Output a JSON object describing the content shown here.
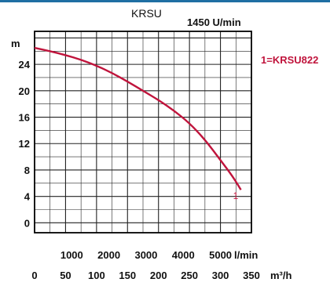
{
  "chart_data": {
    "type": "line",
    "title": "KRSU",
    "subtitle": "1450 U/min",
    "ylabel": "m",
    "x_top_unit": "l/min",
    "x_bottom_unit": "m³/h",
    "x_top_ticks": [
      "1000",
      "2000",
      "3000",
      "4000",
      "5000"
    ],
    "x_bottom_ticks": [
      "0",
      "50",
      "100",
      "150",
      "200",
      "250",
      "300",
      "350"
    ],
    "y_ticks": [
      "0",
      "4",
      "8",
      "12",
      "16",
      "20",
      "24"
    ],
    "xlim": [
      0,
      350
    ],
    "ylim": [
      -1.5,
      29
    ],
    "grid": true,
    "legend_label": "1=KRSU822",
    "series": [
      {
        "label": "1",
        "color": "#c0143c",
        "x": [
          0,
          25,
          50,
          75,
          100,
          125,
          150,
          175,
          200,
          225,
          250,
          275,
          300,
          320,
          333
        ],
        "y": [
          26.5,
          26.0,
          25.4,
          24.7,
          23.8,
          22.7,
          21.4,
          20.0,
          18.6,
          17.0,
          15.1,
          12.6,
          9.5,
          7.0,
          5.0
        ]
      }
    ]
  }
}
